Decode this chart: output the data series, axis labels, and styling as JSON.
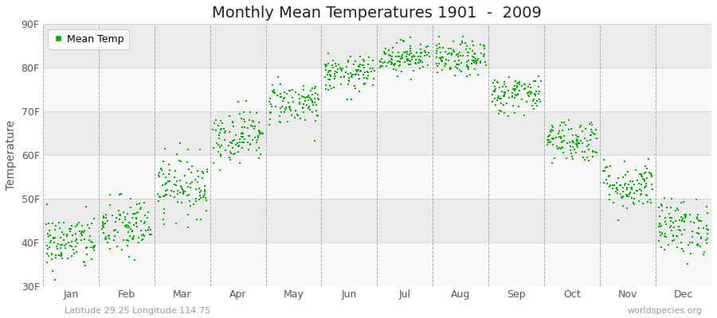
{
  "title": "Monthly Mean Temperatures 1901  -  2009",
  "ylabel": "Temperature",
  "ylim": [
    30,
    90
  ],
  "yticks": [
    30,
    40,
    50,
    60,
    70,
    80,
    90
  ],
  "ytick_labels": [
    "30F",
    "40F",
    "50F",
    "60F",
    "70F",
    "80F",
    "90F"
  ],
  "months": [
    "Jan",
    "Feb",
    "Mar",
    "Apr",
    "May",
    "Jun",
    "Jul",
    "Aug",
    "Sep",
    "Oct",
    "Nov",
    "Dec"
  ],
  "mean_temps_F": [
    40.0,
    43.5,
    53.0,
    64.5,
    72.0,
    78.5,
    82.5,
    82.0,
    74.0,
    63.5,
    53.0,
    43.5
  ],
  "std_temps_F": [
    3.2,
    3.5,
    3.5,
    3.0,
    2.5,
    2.0,
    1.8,
    2.0,
    2.2,
    2.5,
    2.8,
    3.2
  ],
  "n_years": 109,
  "marker_color": "#00aa00",
  "marker_size": 3,
  "bg_color": "#f4f4f4",
  "band_light": "#f8f8f8",
  "band_dark": "#ebebeb",
  "dash_color": "#aaaaaa",
  "legend_label": "Mean Temp",
  "footer_left": "Latitude 29.25 Longitude 114.75",
  "footer_right": "worldspecies.org",
  "title_fontsize": 14,
  "axis_label_fontsize": 10,
  "tick_fontsize": 9,
  "footer_fontsize": 8
}
